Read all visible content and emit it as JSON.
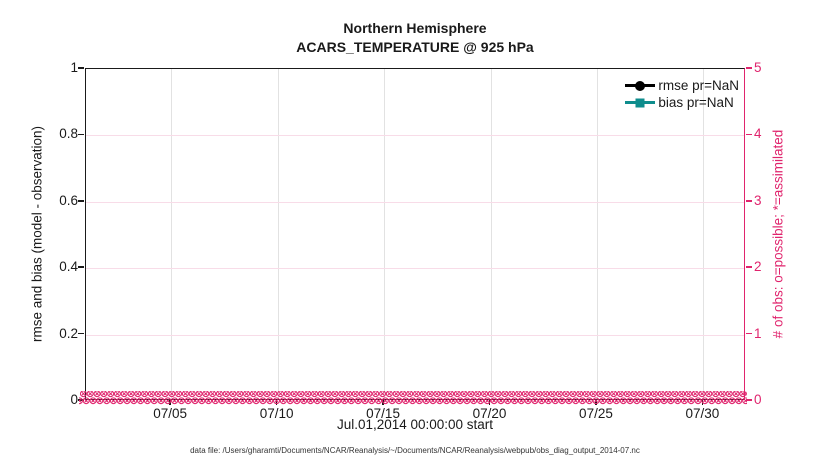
{
  "figure_title": {
    "line1": "Northern Hemisphere",
    "line2": "ACARS_TEMPERATURE @ 925 hPa"
  },
  "footnote": "data file: /Users/gharamti/Documents/NCAR/Reanalysis/~/Documents/NCAR/Reanalysis/webpub/obs_diag_output_2014-07.nc",
  "legend": {
    "entries": [
      {
        "label": "rmse pr=NaN",
        "color": "#000000",
        "marker": "circle"
      },
      {
        "label": "bias pr=NaN",
        "color": "#0e8d8d",
        "marker": "square"
      }
    ]
  },
  "colors": {
    "right_axis": "#e0246d",
    "teal": "#0e8d8d",
    "grid_vertical": "#e2e2e2",
    "grid_horizontal": "#f8dce8",
    "axis_black": "#1a1a1a"
  },
  "chart_data": {
    "type": "line",
    "title": "Northern Hemisphere",
    "subtitle": "ACARS_TEMPERATURE @ 925 hPa",
    "xlabel": "Jul.01,2014 00:00:00 start",
    "x_axis": {
      "start": "07/01/2014 00:00:00",
      "days_total": 31,
      "tick_days": [
        4,
        9,
        14,
        19,
        24,
        29
      ],
      "tick_labels": [
        "07/05",
        "07/10",
        "07/15",
        "07/20",
        "07/25",
        "07/30"
      ]
    },
    "y_left": {
      "label": "rmse and bias (model - observation)",
      "lim": [
        0,
        1
      ],
      "ticks": [
        0,
        0.2,
        0.4,
        0.6,
        0.8,
        1
      ],
      "tick_labels": [
        "0",
        "0.2",
        "0.4",
        "0.6",
        "0.8",
        "1"
      ]
    },
    "y_right": {
      "label": "# of obs: o=possible; *=assimilated",
      "lim": [
        0,
        5
      ],
      "ticks": [
        0,
        1,
        2,
        3,
        4,
        5
      ],
      "tick_labels": [
        "0",
        "1",
        "2",
        "3",
        "4",
        "5"
      ]
    },
    "series": [
      {
        "name": "rmse pr=NaN",
        "axis": "left",
        "marker": "circle",
        "color": "#000000",
        "values": null
      },
      {
        "name": "bias pr=NaN",
        "axis": "left",
        "marker": "square",
        "color": "#0e8d8d",
        "values": null
      },
      {
        "name": "possible obs (o)",
        "axis": "right",
        "marker": "o",
        "color": "#e0246d",
        "constant_value": 0
      },
      {
        "name": "assimilated obs (x)",
        "axis": "right",
        "marker": "x",
        "color": "#e0246d",
        "constant_value": 0
      }
    ],
    "grid": true,
    "legend_position": "upper right inside"
  }
}
